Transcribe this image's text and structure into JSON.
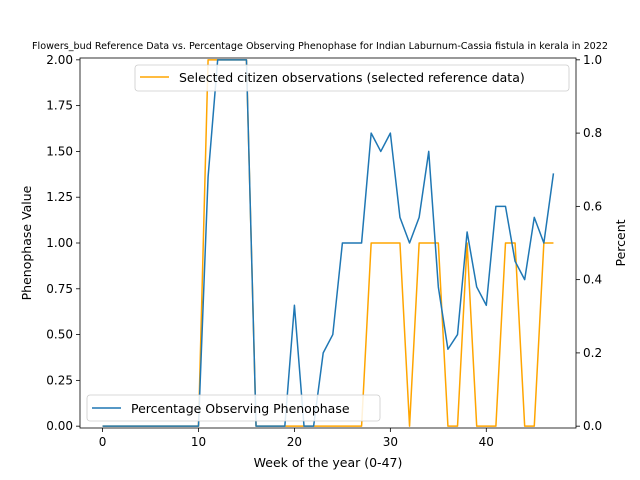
{
  "chart_data": {
    "type": "line",
    "title": "Flowers_bud Reference Data vs. Percentage Observing Phenophase for Indian Laburnum-Cassia fistula in kerala in 2022",
    "xlabel": "Week of the year (0-47)",
    "ylabel_left": "Phenophase Value",
    "ylabel_right": "Percent",
    "xlim": [
      -2.35,
      49.35
    ],
    "ylim_left": [
      -0.01,
      2.01
    ],
    "ylim_right": [
      -0.005,
      1.005
    ],
    "x_ticks": [
      0,
      10,
      20,
      30,
      40
    ],
    "y_ticks_left": [
      0.0,
      0.25,
      0.5,
      0.75,
      1.0,
      1.25,
      1.5,
      1.75,
      2.0
    ],
    "y_ticks_right": [
      0.0,
      0.2,
      0.4,
      0.6,
      0.8,
      1.0
    ],
    "y_tick_labels_left": [
      "0.00",
      "0.25",
      "0.50",
      "0.75",
      "1.00",
      "1.25",
      "1.50",
      "1.75",
      "2.00"
    ],
    "y_tick_labels_right": [
      "0.0",
      "0.2",
      "0.4",
      "0.6",
      "0.8",
      "1.0"
    ],
    "grid": false,
    "series": [
      {
        "name": "Selected citizen observations (selected reference data)",
        "axis": "left",
        "color": "#ffa500",
        "legend": "top-right",
        "x": [
          0,
          1,
          2,
          3,
          4,
          5,
          6,
          7,
          8,
          9,
          10,
          11,
          12,
          13,
          14,
          15,
          16,
          17,
          18,
          19,
          20,
          21,
          22,
          23,
          24,
          25,
          26,
          27,
          28,
          29,
          30,
          31,
          32,
          33,
          34,
          35,
          36,
          37,
          38,
          39,
          40,
          41,
          42,
          43,
          44,
          45,
          46,
          47
        ],
        "y": [
          0,
          0,
          0,
          0,
          0,
          0,
          0,
          0,
          0,
          0,
          0,
          2,
          2,
          2,
          2,
          2,
          0,
          0,
          0,
          0,
          0,
          0,
          0,
          0,
          0,
          0,
          0,
          0,
          1,
          1,
          1,
          1,
          0,
          1,
          1,
          1,
          0,
          0,
          1,
          0,
          0,
          0,
          1,
          1,
          0,
          0,
          1,
          1
        ]
      },
      {
        "name": "Percentage Observing Phenophase",
        "axis": "right",
        "color": "#1f77b4",
        "legend": "bottom-left",
        "x": [
          0,
          1,
          2,
          3,
          4,
          5,
          6,
          7,
          8,
          9,
          10,
          11,
          12,
          13,
          14,
          15,
          16,
          17,
          18,
          19,
          20,
          21,
          22,
          23,
          24,
          25,
          26,
          27,
          28,
          29,
          30,
          31,
          32,
          33,
          34,
          35,
          36,
          37,
          38,
          39,
          40,
          41,
          42,
          43,
          44,
          45,
          46,
          47
        ],
        "y": [
          0,
          0,
          0,
          0,
          0,
          0,
          0,
          0,
          0,
          0,
          0,
          0.68,
          1,
          1,
          1,
          1,
          0,
          0,
          0,
          0,
          0.33,
          0,
          0,
          0.2,
          0.25,
          0.5,
          0.5,
          0.5,
          0.8,
          0.75,
          0.8,
          0.57,
          0.5,
          0.57,
          0.75,
          0.38,
          0.21,
          0.25,
          0.53,
          0.38,
          0.33,
          0.6,
          0.6,
          0.45,
          0.4,
          0.57,
          0.5,
          0.69
        ]
      }
    ]
  }
}
